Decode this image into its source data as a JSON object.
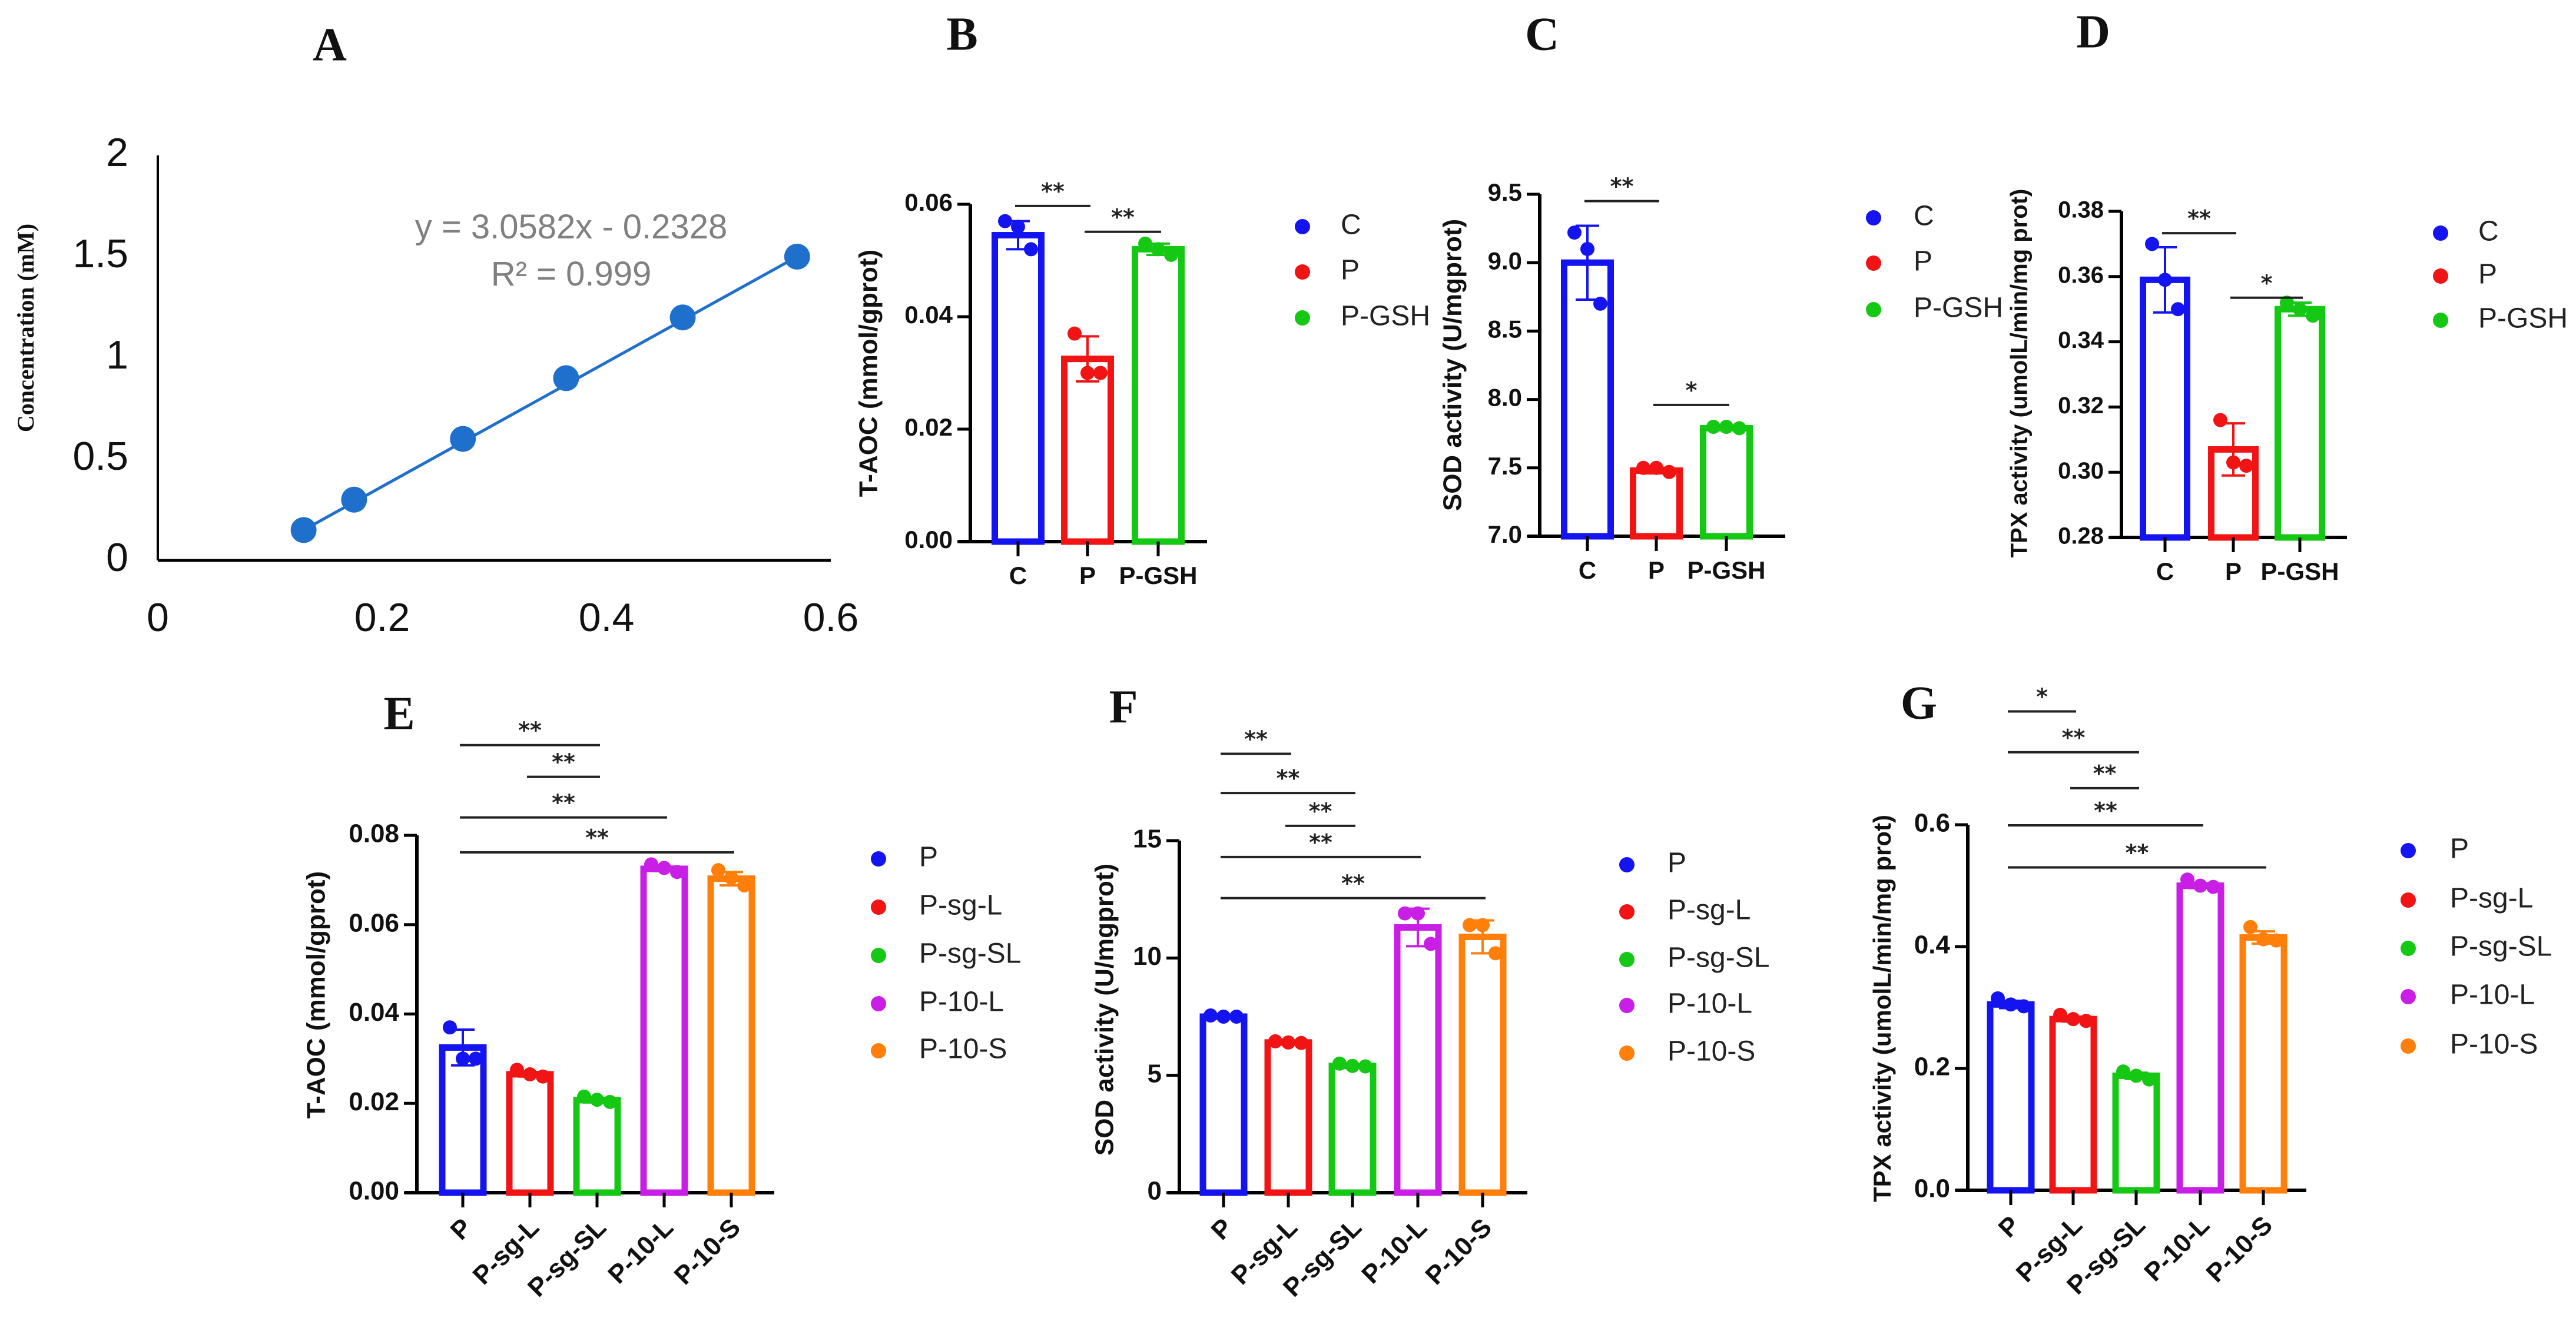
{
  "chart_data": [
    {
      "id": "A",
      "panel_label": "A",
      "type": "scatter",
      "ylabel": "Concentration (mM)",
      "xlabel": "",
      "x": [
        0.13,
        0.175,
        0.272,
        0.364,
        0.468,
        0.57
      ],
      "y": [
        0.15,
        0.3,
        0.6,
        0.9,
        1.2,
        1.5
      ],
      "xlim": [
        0,
        0.6
      ],
      "ylim": [
        0,
        2
      ],
      "xticks": [
        "0",
        "0.2",
        "0.4",
        "0.6"
      ],
      "yticks": [
        "0",
        "0.5",
        "1",
        "1.5",
        "2"
      ],
      "equation": "y = 3.0582x - 0.2328",
      "r2": "R² = 0.999",
      "color": "#1f6fcc"
    },
    {
      "id": "B",
      "panel_label": "B",
      "type": "bar",
      "ylabel": "T-AOC (mmol/gprot)",
      "categories": [
        "C",
        "P",
        "P-GSH"
      ],
      "values": [
        0.0545,
        0.0325,
        0.052
      ],
      "sd": [
        0.0025,
        0.004,
        0.001
      ],
      "points": [
        [
          0.057,
          0.056,
          0.052
        ],
        [
          0.037,
          0.03,
          0.03
        ],
        [
          0.053,
          0.052,
          0.051
        ]
      ],
      "colors": [
        "#1414f0",
        "#f01414",
        "#14c814"
      ],
      "ylim": [
        0,
        0.06
      ],
      "yticks": [
        "0.00",
        "0.02",
        "0.04",
        "0.06"
      ],
      "legend": [
        "C",
        "P",
        "P-GSH"
      ],
      "significance": [
        {
          "from": 0,
          "to": 1,
          "y": 0.0597,
          "label": "**"
        },
        {
          "from": 1,
          "to": 2,
          "y": 0.0551,
          "label": "**"
        }
      ]
    },
    {
      "id": "C",
      "panel_label": "C",
      "type": "bar",
      "ylabel": "SOD activity (U/mgprot)",
      "categories": [
        "C",
        "P",
        "P-GSH"
      ],
      "values": [
        9.0,
        7.48,
        7.79
      ],
      "sd": [
        0.27,
        0.02,
        0.01
      ],
      "points": [
        [
          9.22,
          9.1,
          8.7
        ],
        [
          7.5,
          7.5,
          7.47
        ],
        [
          7.8,
          7.8,
          7.79
        ]
      ],
      "colors": [
        "#1414f0",
        "#f01414",
        "#14c814"
      ],
      "ylim": [
        7.0,
        9.5
      ],
      "yticks": [
        "7.0",
        "7.5",
        "8.0",
        "8.5",
        "9.0",
        "9.5"
      ],
      "legend": [
        "C",
        "P",
        "P-GSH"
      ],
      "significance": [
        {
          "from": 0,
          "to": 1,
          "y": 9.45,
          "label": "**"
        },
        {
          "from": 1,
          "to": 2,
          "y": 7.96,
          "label": "*"
        }
      ]
    },
    {
      "id": "D",
      "panel_label": "D",
      "type": "bar",
      "ylabel": "TPX activity (umolL/min/mg prot)",
      "categories": [
        "C",
        "P",
        "P-GSH"
      ],
      "values": [
        0.359,
        0.307,
        0.35
      ],
      "sd": [
        0.01,
        0.008,
        0.002
      ],
      "points": [
        [
          0.37,
          0.359,
          0.35
        ],
        [
          0.316,
          0.303,
          0.302
        ],
        [
          0.352,
          0.35,
          0.348
        ]
      ],
      "colors": [
        "#1414f0",
        "#f01414",
        "#14c814"
      ],
      "ylim": [
        0.28,
        0.38
      ],
      "yticks": [
        "0.28",
        "0.30",
        "0.32",
        "0.34",
        "0.36",
        "0.38"
      ],
      "legend": [
        "C",
        "P",
        "P-GSH"
      ],
      "significance": [
        {
          "from": 0,
          "to": 1,
          "y": 0.3733,
          "label": "**"
        },
        {
          "from": 1,
          "to": 2,
          "y": 0.3535,
          "label": "*"
        }
      ]
    },
    {
      "id": "E",
      "panel_label": "E",
      "type": "bar",
      "ylabel": "T-AOC (mmol/gprot)",
      "categories": [
        "P",
        "P-sg-L",
        "P-sg-SL",
        "P-10-L",
        "P-10-S"
      ],
      "values": [
        0.0325,
        0.0265,
        0.0207,
        0.0725,
        0.0703
      ],
      "sd": [
        0.004,
        0.0005,
        0.0005,
        0.0005,
        0.0015
      ],
      "points": [
        [
          0.037,
          0.03,
          0.03
        ],
        [
          0.0275,
          0.0265,
          0.026
        ],
        [
          0.0215,
          0.0208,
          0.0203
        ],
        [
          0.0735,
          0.0727,
          0.0718
        ],
        [
          0.0722,
          0.0705,
          0.0688
        ]
      ],
      "colors": [
        "#1414f0",
        "#f01414",
        "#14c814",
        "#c81ee6",
        "#ff7f0a"
      ],
      "ylim": [
        0,
        0.08
      ],
      "yticks": [
        "0.00",
        "0.02",
        "0.04",
        "0.06",
        "0.08"
      ],
      "legend": [
        "P",
        "P-sg-L",
        "P-sg-SL",
        "P-10-L",
        "P-10-S"
      ],
      "significance": [
        {
          "from": 0,
          "to": 2,
          "y": 0.1002,
          "label": "**"
        },
        {
          "from": 1,
          "to": 2,
          "y": 0.0931,
          "label": "**"
        },
        {
          "from": 0,
          "to": 3,
          "y": 0.084,
          "label": "**"
        },
        {
          "from": 0,
          "to": 4,
          "y": 0.0762,
          "label": "**"
        }
      ]
    },
    {
      "id": "F",
      "panel_label": "F",
      "type": "bar",
      "ylabel": "SOD activity (U/mgprot)",
      "categories": [
        "P",
        "P-sg-L",
        "P-sg-SL",
        "P-10-L",
        "P-10-S"
      ],
      "values": [
        7.5,
        6.4,
        5.4,
        11.3,
        10.9
      ],
      "sd": [
        0.05,
        0.05,
        0.05,
        0.8,
        0.7
      ],
      "points": [
        [
          7.55,
          7.5,
          7.5
        ],
        [
          6.45,
          6.4,
          6.38
        ],
        [
          5.5,
          5.4,
          5.38
        ],
        [
          11.9,
          11.9,
          10.6
        ],
        [
          11.4,
          11.4,
          10.2
        ]
      ],
      "colors": [
        "#1414f0",
        "#f01414",
        "#14c814",
        "#c81ee6",
        "#ff7f0a"
      ],
      "ylim": [
        0,
        15
      ],
      "yticks": [
        "0",
        "5",
        "10",
        "15"
      ],
      "legend": [
        "P",
        "P-sg-L",
        "P-sg-SL",
        "P-10-L",
        "P-10-S"
      ],
      "significance": [
        {
          "from": 0,
          "to": 1,
          "y": 18.7,
          "label": "**"
        },
        {
          "from": 0,
          "to": 2,
          "y": 17.03,
          "label": "**"
        },
        {
          "from": 1,
          "to": 2,
          "y": 15.63,
          "label": "**"
        },
        {
          "from": 0,
          "to": 3,
          "y": 14.3,
          "label": "**"
        },
        {
          "from": 0,
          "to": 4,
          "y": 12.55,
          "label": "**"
        }
      ]
    },
    {
      "id": "G",
      "panel_label": "G",
      "type": "bar",
      "ylabel": "TPX activity (umolL/min/mg prot)",
      "categories": [
        "P",
        "P-sg-L",
        "P-sg-SL",
        "P-10-L",
        "P-10-S"
      ],
      "values": [
        0.305,
        0.281,
        0.188,
        0.5,
        0.415
      ],
      "sd": [
        0.006,
        0.004,
        0.005,
        0.004,
        0.01
      ],
      "points": [
        [
          0.315,
          0.305,
          0.302
        ],
        [
          0.288,
          0.281,
          0.278
        ],
        [
          0.195,
          0.188,
          0.182
        ],
        [
          0.51,
          0.5,
          0.498
        ],
        [
          0.432,
          0.412,
          0.41
        ]
      ],
      "colors": [
        "#1414f0",
        "#f01414",
        "#14c814",
        "#c81ee6",
        "#ff7f0a"
      ],
      "ylim": [
        0,
        0.6
      ],
      "yticks": [
        "0.0",
        "0.2",
        "0.4",
        "0.6"
      ],
      "legend": [
        "P",
        "P-sg-L",
        "P-sg-SL",
        "P-10-L",
        "P-10-S"
      ],
      "significance": [
        {
          "from": 0,
          "to": 1,
          "y": 0.786,
          "label": "*"
        },
        {
          "from": 0,
          "to": 2,
          "y": 0.719,
          "label": "**"
        },
        {
          "from": 1,
          "to": 2,
          "y": 0.66,
          "label": "**"
        },
        {
          "from": 0,
          "to": 3,
          "y": 0.599,
          "label": "**"
        },
        {
          "from": 0,
          "to": 4,
          "y": 0.53,
          "label": "**"
        }
      ]
    }
  ]
}
